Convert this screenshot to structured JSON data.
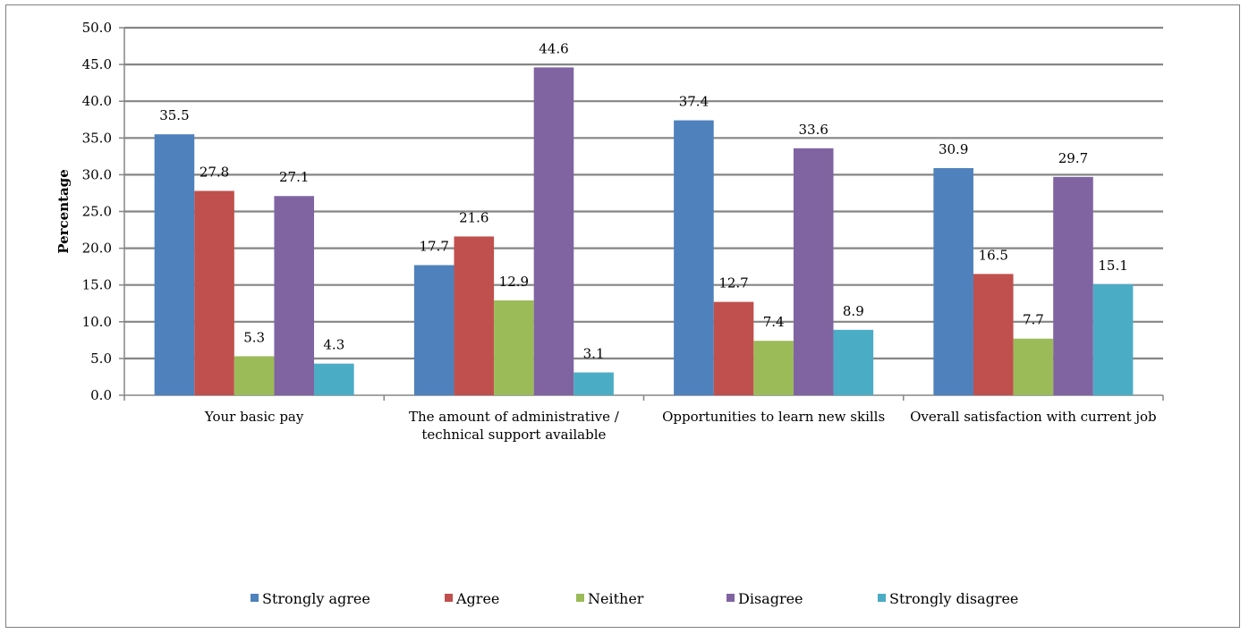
{
  "chart_data": {
    "type": "bar",
    "title": "",
    "xlabel": "",
    "ylabel": "Percentage",
    "ylim": [
      0,
      50
    ],
    "ytick_step": 5,
    "ytick_labels": [
      "0.0",
      "5.0",
      "10.0",
      "15.0",
      "20.0",
      "25.0",
      "30.0",
      "35.0",
      "40.0",
      "45.0",
      "50.0"
    ],
    "grid": true,
    "legend_position": "bottom",
    "categories": [
      [
        "Your basic pay"
      ],
      [
        "The amount of administrative /",
        "technical support available"
      ],
      [
        "Opportunities to learn new skills"
      ],
      [
        "Overall satisfaction with current job"
      ]
    ],
    "series": [
      {
        "name": "Strongly agree",
        "color": "#4f81bd",
        "values": [
          35.5,
          17.7,
          37.4,
          30.9
        ]
      },
      {
        "name": "Agree",
        "color": "#c0504d",
        "values": [
          27.8,
          21.6,
          12.7,
          16.5
        ]
      },
      {
        "name": "Neither",
        "color": "#9bbb59",
        "values": [
          5.3,
          12.9,
          7.4,
          7.7
        ]
      },
      {
        "name": "Disagree",
        "color": "#8064a2",
        "values": [
          27.1,
          44.6,
          33.6,
          29.7
        ]
      },
      {
        "name": "Strongly disagree",
        "color": "#4bacc6",
        "values": [
          4.3,
          3.1,
          8.9,
          15.1
        ]
      }
    ],
    "data_labels": [
      [
        "35.5",
        "17.7",
        "37.4",
        "30.9"
      ],
      [
        "27.8",
        "21.6",
        "12.7",
        "16.5"
      ],
      [
        "5.3",
        "12.9",
        "7.4",
        "7.7"
      ],
      [
        "27.1",
        "44.6",
        "33.6",
        "29.7"
      ],
      [
        "4.3",
        "3.1",
        "8.9",
        "15.1"
      ]
    ]
  }
}
